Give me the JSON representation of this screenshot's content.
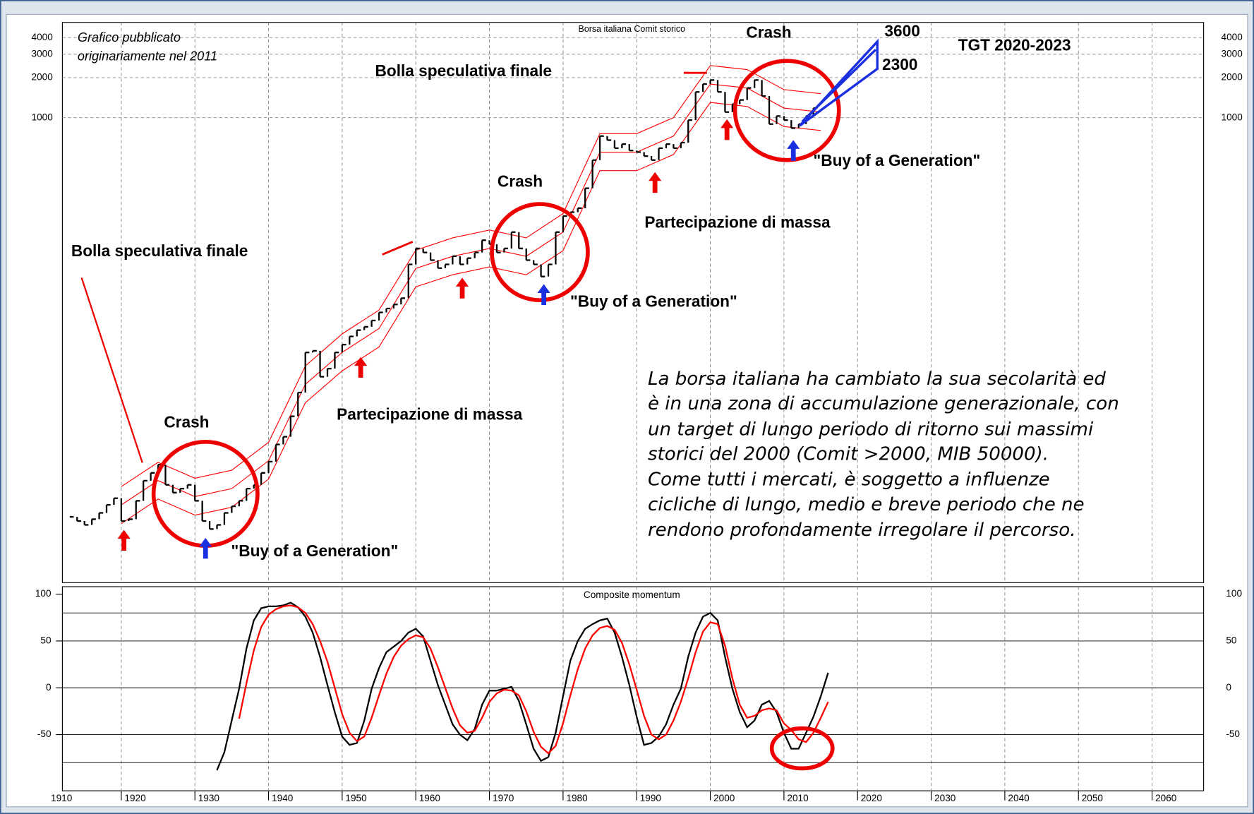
{
  "chart_data": [
    {
      "type": "stock",
      "title": "Borsa italiana Comit storico",
      "log_scale": true,
      "grid": true,
      "ylim": [
        0.32,
        5200
      ],
      "yticks": [
        1000,
        2000,
        3000,
        4000
      ],
      "color": "#000000",
      "x": [
        1913,
        1914,
        1915,
        1916,
        1917,
        1918,
        1919,
        1920,
        1921,
        1922,
        1923,
        1924,
        1925,
        1926,
        1927,
        1928,
        1929,
        1930,
        1931,
        1932,
        1933,
        1934,
        1935,
        1936,
        1937,
        1938,
        1939,
        1940,
        1941,
        1942,
        1943,
        1944,
        1945,
        1946,
        1947,
        1948,
        1949,
        1950,
        1951,
        1952,
        1953,
        1954,
        1955,
        1956,
        1957,
        1958,
        1959,
        1960,
        1961,
        1962,
        1963,
        1964,
        1965,
        1966,
        1967,
        1968,
        1969,
        1970,
        1971,
        1972,
        1973,
        1974,
        1975,
        1976,
        1977,
        1978,
        1979,
        1980,
        1981,
        1982,
        1983,
        1984,
        1985,
        1986,
        1987,
        1988,
        1989,
        1990,
        1991,
        1992,
        1993,
        1994,
        1995,
        1996,
        1997,
        1998,
        1999,
        2000,
        2001,
        2002,
        2003,
        2004,
        2005,
        2006,
        2007,
        2008,
        2009,
        2010,
        2011,
        2012,
        2013,
        2014
      ],
      "values": [
        1.0,
        0.93,
        0.87,
        0.96,
        1.07,
        1.23,
        1.38,
        0.93,
        0.96,
        1.32,
        1.87,
        2.14,
        2.47,
        1.74,
        1.52,
        1.63,
        1.74,
        1.32,
        0.93,
        0.81,
        0.87,
        1.07,
        1.2,
        1.32,
        1.63,
        1.74,
        2.14,
        2.6,
        3.5,
        4.0,
        5.7,
        8.6,
        17.2,
        17.7,
        11.3,
        13.0,
        17.2,
        19.7,
        22.7,
        25.3,
        26.8,
        29.9,
        34.4,
        36.8,
        39.5,
        44,
        79,
        104,
        97,
        85,
        74,
        79,
        91,
        79,
        88,
        97,
        120,
        112,
        97,
        104,
        138,
        104,
        85,
        79,
        64,
        79,
        138,
        182,
        195,
        209,
        295,
        480,
        727,
        678,
        590,
        633,
        566,
        551,
        514,
        480,
        590,
        633,
        590,
        650,
        959,
        1560,
        1791,
        1919,
        1560,
        1102,
        1265,
        1358,
        1671,
        1919,
        1455,
        895,
        1028,
        959,
        835,
        895,
        1028,
        1181
      ],
      "bands": {
        "color": "#ff0000",
        "x": [
          1920,
          1925,
          1930,
          1935,
          1940,
          1945,
          1950,
          1955,
          1960,
          1965,
          1970,
          1975,
          1980,
          1985,
          1990,
          1995,
          2000,
          2005,
          2010,
          2015
        ],
        "upper": [
          1.69,
          2.57,
          1.95,
          2.24,
          3.63,
          13.6,
          23.7,
          35.8,
          101,
          125,
          143,
          125,
          190,
          758,
          758,
          1000,
          2464,
          2299,
          1625,
          1516
        ],
        "middle": [
          1.23,
          1.87,
          1.42,
          1.63,
          2.64,
          9.9,
          17.2,
          26,
          73.6,
          90.8,
          104,
          90.8,
          138,
          551,
          551,
          727,
          1791,
          1671,
          1181,
          1102
        ],
        "lower": [
          0.89,
          1.36,
          1.03,
          1.18,
          1.92,
          7.2,
          12.5,
          18.9,
          53.5,
          66,
          75.6,
          66,
          100,
          400,
          400,
          528,
          1302,
          1214,
          858,
          801
        ]
      },
      "annotations": [
        "Grafico pubblicato",
        "originariamente nel 2011",
        "Crash",
        "Crash",
        "Crash",
        "Bolla speculativa finale",
        "Bolla speculativa finale",
        "Partecipazione di massa",
        "Partecipazione di massa",
        "\"Buy of a Generation\"",
        "\"Buy of a Generation\"",
        "\"Buy of a Generation\"",
        "TGT 2020-2023",
        "3600",
        "2300"
      ],
      "note": [
        "La borsa italiana ha cambiato la sua secolarità ed",
        "è in una zona di accumulazione generazionale, con",
        "un target di lungo periodo di ritorno sui massimi",
        "storici del 2000 (Comit >2000, MIB 50000).",
        "Come tutti i mercati, è soggetto a influenze",
        "cicliche di lungo, medio e breve periodo che ne",
        "rendono profondamente irregolare il percorso."
      ]
    },
    {
      "type": "line",
      "title": "Composite momentum",
      "xlim": [
        1912,
        2067
      ],
      "xticks": [
        1910,
        1920,
        1930,
        1940,
        1950,
        1960,
        1970,
        1980,
        1990,
        2000,
        2010,
        2020,
        2030,
        2040,
        2050,
        2060
      ],
      "ylim": [
        -110,
        108
      ],
      "yticks": [
        100,
        50,
        0,
        -50
      ],
      "hlines": [
        80,
        50,
        0,
        -50,
        -80
      ],
      "x": [
        1933,
        1934,
        1935,
        1936,
        1937,
        1938,
        1939,
        1940,
        1941,
        1942,
        1943,
        1944,
        1945,
        1946,
        1947,
        1948,
        1949,
        1950,
        1951,
        1952,
        1953,
        1954,
        1955,
        1956,
        1957,
        1958,
        1959,
        1960,
        1961,
        1962,
        1963,
        1964,
        1965,
        1966,
        1967,
        1968,
        1969,
        1970,
        1971,
        1972,
        1973,
        1974,
        1975,
        1976,
        1977,
        1978,
        1979,
        1980,
        1981,
        1982,
        1983,
        1984,
        1985,
        1986,
        1987,
        1988,
        1989,
        1990,
        1991,
        1992,
        1993,
        1994,
        1995,
        1996,
        1997,
        1998,
        1999,
        2000,
        2001,
        2002,
        2003,
        2004,
        2005,
        2006,
        2007,
        2008,
        2009,
        2010,
        2011,
        2012,
        2013,
        2014,
        2015,
        2016
      ],
      "series": [
        {
          "color": "#000000",
          "values": [
            -88,
            -69,
            -35,
            -1,
            42,
            72,
            85,
            87,
            87,
            88,
            91,
            86,
            76,
            59,
            33,
            3,
            -26,
            -52,
            -61,
            -59,
            -35,
            -1,
            21,
            38,
            44,
            50,
            59,
            63,
            55,
            29,
            3,
            -18,
            -39,
            -50,
            -56,
            -44,
            -18,
            -3,
            -3,
            -1,
            1,
            -14,
            -39,
            -65,
            -78,
            -74,
            -48,
            -9,
            29,
            50,
            63,
            68,
            72,
            74,
            59,
            33,
            3,
            -31,
            -61,
            -59,
            -52,
            -39,
            -18,
            -1,
            33,
            59,
            76,
            80,
            72,
            33,
            -1,
            -26,
            -42,
            -35,
            -18,
            -14,
            -26,
            -48,
            -65,
            -65,
            -48,
            -31,
            -9,
            16
          ]
        },
        {
          "color": "#ff0000",
          "values": [
            null,
            null,
            null,
            -33,
            5,
            40,
            65,
            78,
            84,
            87,
            88,
            86,
            80,
            68,
            50,
            28,
            0,
            -28,
            -48,
            -57,
            -52,
            -32,
            -8,
            15,
            33,
            45,
            52,
            56,
            54,
            42,
            22,
            0,
            -22,
            -40,
            -48,
            -46,
            -32,
            -15,
            -6,
            -2,
            -3,
            -8,
            -25,
            -47,
            -63,
            -70,
            -62,
            -38,
            -8,
            20,
            42,
            56,
            64,
            66,
            62,
            48,
            25,
            -2,
            -30,
            -50,
            -55,
            -50,
            -35,
            -15,
            10,
            38,
            60,
            70,
            68,
            45,
            10,
            -18,
            -32,
            -30,
            -24,
            -22,
            -24,
            -38,
            -45,
            -55,
            -58,
            -48,
            -32,
            -15
          ]
        }
      ]
    }
  ]
}
